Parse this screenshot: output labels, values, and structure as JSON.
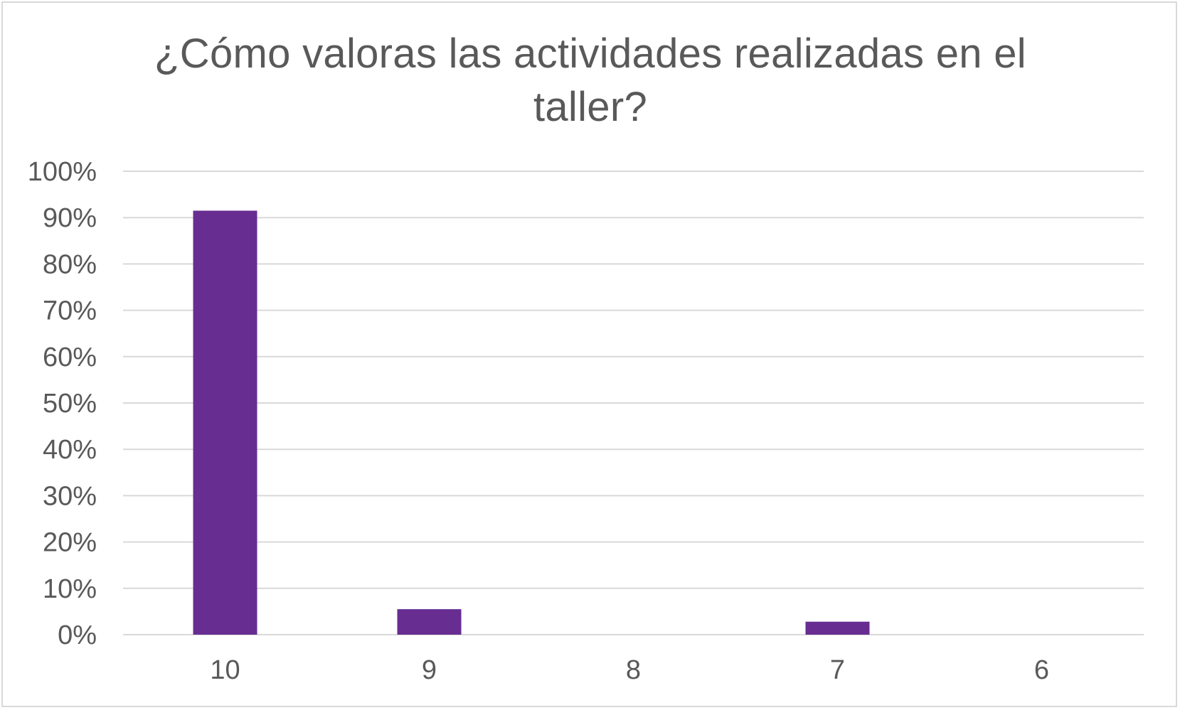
{
  "chart_data": {
    "type": "bar",
    "title": "¿Cómo valoras las actividades realizadas en el taller?",
    "categories": [
      "10",
      "9",
      "8",
      "7",
      "6"
    ],
    "values": [
      91.5,
      5.5,
      0,
      2.8,
      0
    ],
    "ylim": [
      0,
      100
    ],
    "yticks": [
      0,
      10,
      20,
      30,
      40,
      50,
      60,
      70,
      80,
      90,
      100
    ],
    "ytick_labels": [
      "0%",
      "10%",
      "20%",
      "30%",
      "40%",
      "50%",
      "60%",
      "70%",
      "80%",
      "90%",
      "100%"
    ],
    "xlabel": "",
    "ylabel": "",
    "grid": true,
    "legend": "none",
    "bar_color": "#672D91"
  }
}
